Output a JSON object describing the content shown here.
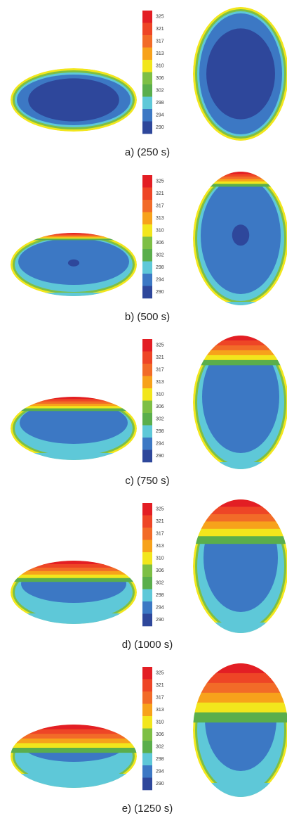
{
  "colorbar": {
    "labels": [
      "325",
      "321",
      "317",
      "313",
      "310",
      "306",
      "302",
      "298",
      "294",
      "290"
    ]
  },
  "panels": [
    {
      "caption": "a) (250 s)"
    },
    {
      "caption": "b) (500 s)"
    },
    {
      "caption": "c) (750 s)"
    },
    {
      "caption": "d) (1000 s)"
    },
    {
      "caption": "e) (1250 s)"
    }
  ]
}
